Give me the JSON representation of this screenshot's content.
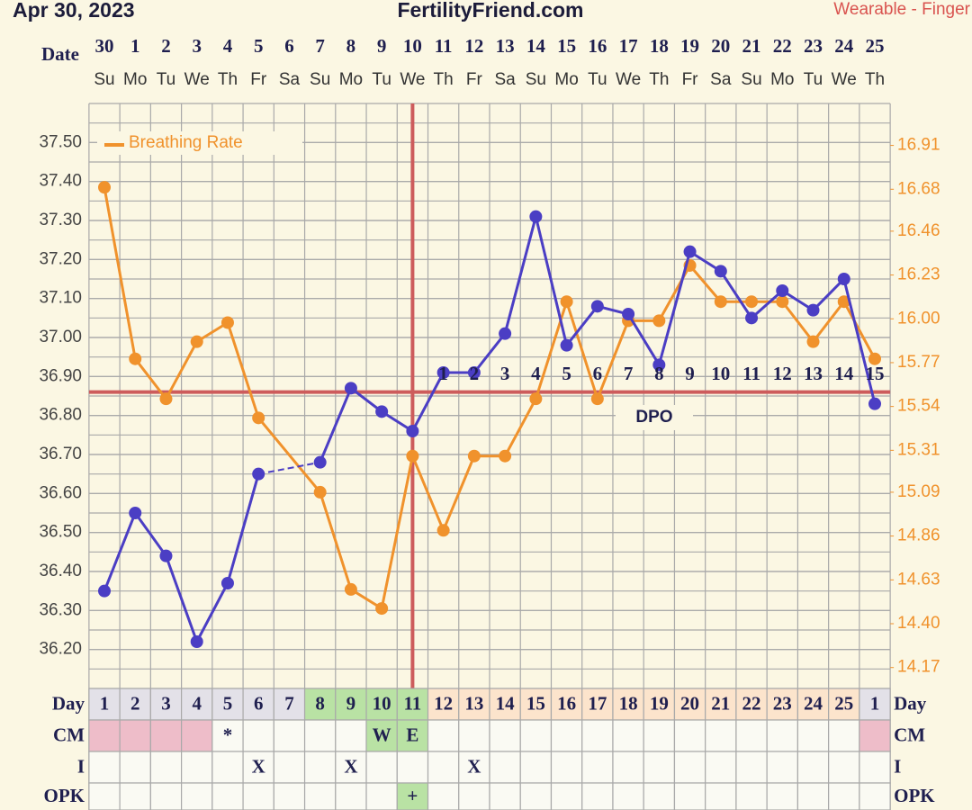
{
  "header": {
    "date": "Apr 30, 2023",
    "site": "FertilityFriend.com",
    "source": "Wearable - Finger"
  },
  "chart_data": {
    "type": "line",
    "x_label": "Date",
    "categories": [
      "30",
      "1",
      "2",
      "3",
      "4",
      "5",
      "6",
      "7",
      "8",
      "9",
      "10",
      "11",
      "12",
      "13",
      "14",
      "15",
      "16",
      "17",
      "18",
      "19",
      "20",
      "21",
      "22",
      "23",
      "24",
      "25"
    ],
    "weekdays": [
      "Su",
      "Mo",
      "Tu",
      "We",
      "Th",
      "Fr",
      "Sa",
      "Su",
      "Mo",
      "Tu",
      "We",
      "Th",
      "Fr",
      "Sa",
      "Su",
      "Mo",
      "Tu",
      "We",
      "Th",
      "Fr",
      "Sa",
      "Su",
      "Mo",
      "Tu",
      "We",
      "Th"
    ],
    "ylim": [
      36.1,
      37.6
    ],
    "yticks": [
      {
        "value": 37.5,
        "label": "37.50"
      },
      {
        "value": 37.4,
        "label": "37.40"
      },
      {
        "value": 37.3,
        "label": "37.30"
      },
      {
        "value": 37.2,
        "label": "37.20"
      },
      {
        "value": 37.1,
        "label": "37.10"
      },
      {
        "value": 37.0,
        "label": "37.00"
      },
      {
        "value": 36.9,
        "label": "36.90"
      },
      {
        "value": 36.8,
        "label": "36.80"
      },
      {
        "value": 36.7,
        "label": "36.70"
      },
      {
        "value": 36.6,
        "label": "36.60"
      },
      {
        "value": 36.5,
        "label": "36.50"
      },
      {
        "value": 36.4,
        "label": "36.40"
      },
      {
        "value": 36.3,
        "label": "36.30"
      },
      {
        "value": 36.2,
        "label": "36.20"
      }
    ],
    "y2lim": [
      14.06,
      17.13
    ],
    "y2ticks": [
      16.91,
      16.68,
      16.46,
      16.23,
      {
        "value": 16,
        "label": "16.00"
      },
      15.77,
      15.54,
      15.31,
      15.09,
      14.86,
      14.63,
      {
        "value": 14.4,
        "label": "14.40"
      },
      14.17
    ],
    "grid": true,
    "legend": "top-left",
    "series": [
      {
        "color": "#4b3ec4",
        "gap_line": "dashed",
        "values": [
          36.35,
          36.55,
          36.44,
          36.22,
          36.37,
          36.65,
          null,
          36.68,
          36.87,
          36.81,
          36.76,
          36.91,
          36.91,
          37.01,
          37.31,
          36.98,
          37.08,
          37.06,
          36.93,
          37.22,
          37.17,
          37.05,
          37.12,
          37.07,
          37.15,
          36.83
        ]
      },
      {
        "name": "Breathing Rate",
        "color": "#f0922c",
        "axis": "y2",
        "gap_line": "solid",
        "values": [
          16.69,
          15.79,
          15.58,
          15.88,
          15.98,
          15.48,
          null,
          15.09,
          14.58,
          14.48,
          15.28,
          14.89,
          15.28,
          15.28,
          15.58,
          16.09,
          15.58,
          15.99,
          15.99,
          16.28,
          16.09,
          16.09,
          16.09,
          15.88,
          16.09,
          15.79
        ]
      }
    ],
    "coverline": 36.86,
    "marker_color": "#cd5c5c",
    "ovulation_index": 10,
    "dpo_label": "DPO",
    "dpo": [
      null,
      null,
      null,
      null,
      null,
      null,
      null,
      null,
      null,
      null,
      null,
      1,
      2,
      3,
      4,
      5,
      6,
      7,
      8,
      9,
      10,
      11,
      12,
      13,
      14,
      15
    ]
  },
  "table": {
    "rows": [
      {
        "label": "Day",
        "cells": [
          1,
          2,
          3,
          4,
          5,
          6,
          7,
          8,
          9,
          10,
          11,
          12,
          13,
          14,
          15,
          16,
          17,
          18,
          19,
          20,
          21,
          22,
          23,
          24,
          25,
          1
        ],
        "colors": [
          "#e3e1e8",
          "#e3e1e8",
          "#e3e1e8",
          "#e3e1e8",
          "#e3e1e8",
          "#e3e1e8",
          "#e3e1e8",
          "#b9e2a4",
          "#b9e2a4",
          "#b9e2a4",
          "#b9e2a4",
          "#fce4cc",
          "#fce4cc",
          "#fce4cc",
          "#fce4cc",
          "#fce4cc",
          "#fce4cc",
          "#fce4cc",
          "#fce4cc",
          "#fce4cc",
          "#fce4cc",
          "#fce4cc",
          "#fce4cc",
          "#fce4cc",
          "#fce4cc",
          "#e3e1e8"
        ]
      },
      {
        "label": "CM",
        "cells": [
          null,
          null,
          null,
          null,
          "*",
          null,
          null,
          null,
          null,
          "W",
          "E",
          null,
          null,
          null,
          null,
          null,
          null,
          null,
          null,
          null,
          null,
          null,
          null,
          null,
          null,
          null
        ],
        "colors": [
          "#eebdc9",
          "#eebdc9",
          "#eebdc9",
          "#eebdc9",
          "#fafaf3",
          "#fafaf3",
          "#fafaf3",
          "#fafaf3",
          "#fafaf3",
          "#b9e2a4",
          "#b9e2a4",
          "#fafaf3",
          "#fafaf3",
          "#fafaf3",
          "#fafaf3",
          "#fafaf3",
          "#fafaf3",
          "#fafaf3",
          "#fafaf3",
          "#fafaf3",
          "#fafaf3",
          "#fafaf3",
          "#fafaf3",
          "#fafaf3",
          "#fafaf3",
          "#eebdc9"
        ]
      },
      {
        "label": "I",
        "cells": [
          null,
          null,
          null,
          null,
          null,
          "X",
          null,
          null,
          "X",
          null,
          null,
          null,
          "X",
          null,
          null,
          null,
          null,
          null,
          null,
          null,
          null,
          null,
          null,
          null,
          null,
          null
        ],
        "colors": [
          "#fafaf3",
          "#fafaf3",
          "#fafaf3",
          "#fafaf3",
          "#fafaf3",
          "#fafaf3",
          "#fafaf3",
          "#fafaf3",
          "#fafaf3",
          "#fafaf3",
          "#fafaf3",
          "#fafaf3",
          "#fafaf3",
          "#fafaf3",
          "#fafaf3",
          "#fafaf3",
          "#fafaf3",
          "#fafaf3",
          "#fafaf3",
          "#fafaf3",
          "#fafaf3",
          "#fafaf3",
          "#fafaf3",
          "#fafaf3",
          "#fafaf3",
          "#fafaf3"
        ]
      },
      {
        "label": "OPK",
        "cells": [
          null,
          null,
          null,
          null,
          null,
          null,
          null,
          null,
          null,
          null,
          "+",
          null,
          null,
          null,
          null,
          null,
          null,
          null,
          null,
          null,
          null,
          null,
          null,
          null,
          null,
          null
        ],
        "colors": [
          "#fafaf3",
          "#fafaf3",
          "#fafaf3",
          "#fafaf3",
          "#fafaf3",
          "#fafaf3",
          "#fafaf3",
          "#fafaf3",
          "#fafaf3",
          "#fafaf3",
          "#b9e2a4",
          "#fafaf3",
          "#fafaf3",
          "#fafaf3",
          "#fafaf3",
          "#fafaf3",
          "#fafaf3",
          "#fafaf3",
          "#fafaf3",
          "#fafaf3",
          "#fafaf3",
          "#fafaf3",
          "#fafaf3",
          "#fafaf3",
          "#fafaf3",
          "#fafaf3"
        ]
      }
    ]
  }
}
